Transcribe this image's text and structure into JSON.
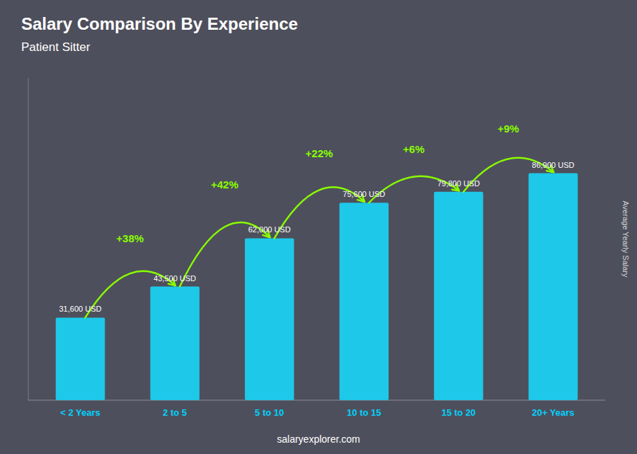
{
  "chart_data": {
    "type": "bar",
    "title": "Salary Comparison By Experience",
    "subtitle": "Patient Sitter",
    "ylabel": "Average Yearly Salary",
    "categories": [
      "< 2 Years",
      "2 to 5",
      "5 to 10",
      "10 to 15",
      "15 to 20",
      "20+ Years"
    ],
    "values": [
      31600,
      43500,
      62000,
      75600,
      79800,
      86900
    ],
    "value_labels": [
      "31,600 USD",
      "43,500 USD",
      "62,000 USD",
      "75,600 USD",
      "79,800 USD",
      "86,900 USD"
    ],
    "data_labels": true,
    "annotations": [
      "+38%",
      "+42%",
      "+22%",
      "+6%",
      "+9%"
    ],
    "source": "salaryexplorer.com",
    "color": "#1ec8e8",
    "ylim": [
      0,
      123398
    ],
    "tick_labels": "x",
    "grid": false
  }
}
